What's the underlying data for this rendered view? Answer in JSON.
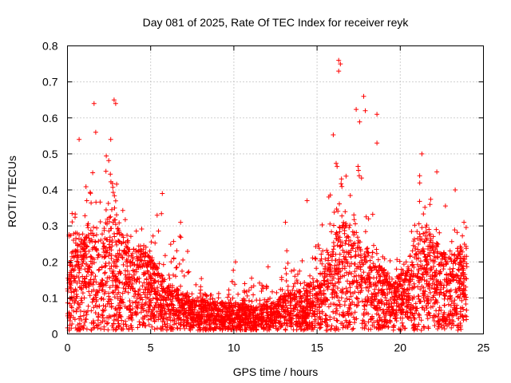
{
  "chart_data": {
    "type": "scatter",
    "title": "Day 081 of 2025, Rate Of TEC Index for receiver reyk",
    "xlabel": "GPS time / hours",
    "ylabel": "ROTI / TECUs",
    "xlim": [
      0,
      25
    ],
    "ylim": [
      0,
      0.8
    ],
    "xticks": [
      "0",
      "5",
      "10",
      "15",
      "20",
      "25"
    ],
    "yticks": [
      "0",
      "0.1",
      "0.2",
      "0.3",
      "0.4",
      "0.5",
      "0.6",
      "0.7",
      "0.8"
    ],
    "grid": true,
    "marker": "+",
    "series_color": "#ff0000",
    "envelope": {
      "hours": [
        0.0,
        0.5,
        1.0,
        1.5,
        2.0,
        2.5,
        3.0,
        3.5,
        4.0,
        4.5,
        5.0,
        5.5,
        6.0,
        6.5,
        7.0,
        7.5,
        8.0,
        8.5,
        9.0,
        9.5,
        10.0,
        10.5,
        11.0,
        11.5,
        12.0,
        12.5,
        13.0,
        13.5,
        14.0,
        14.5,
        15.0,
        15.5,
        16.0,
        16.5,
        17.0,
        17.5,
        18.0,
        18.5,
        19.0,
        19.5,
        20.0,
        20.5,
        21.0,
        21.5,
        22.0,
        22.5,
        23.0,
        23.5,
        24.0
      ],
      "typical": [
        0.15,
        0.18,
        0.2,
        0.22,
        0.2,
        0.25,
        0.22,
        0.2,
        0.18,
        0.18,
        0.16,
        0.13,
        0.1,
        0.09,
        0.08,
        0.07,
        0.07,
        0.06,
        0.06,
        0.06,
        0.06,
        0.06,
        0.05,
        0.05,
        0.06,
        0.06,
        0.08,
        0.08,
        0.09,
        0.1,
        0.11,
        0.14,
        0.2,
        0.24,
        0.22,
        0.2,
        0.18,
        0.15,
        0.13,
        0.11,
        0.12,
        0.14,
        0.2,
        0.22,
        0.2,
        0.17,
        0.16,
        0.18,
        0.18
      ],
      "peak": [
        0.38,
        0.36,
        0.4,
        0.64,
        0.4,
        0.65,
        0.4,
        0.36,
        0.33,
        0.32,
        0.3,
        0.39,
        0.25,
        0.31,
        0.3,
        0.18,
        0.16,
        0.15,
        0.14,
        0.12,
        0.2,
        0.14,
        0.18,
        0.16,
        0.2,
        0.18,
        0.31,
        0.25,
        0.24,
        0.2,
        0.37,
        0.34,
        0.76,
        0.55,
        0.66,
        0.62,
        0.6,
        0.3,
        0.27,
        0.25,
        0.22,
        0.3,
        0.5,
        0.45,
        0.38,
        0.36,
        0.4,
        0.35,
        0.3
      ]
    },
    "notable_points": [
      {
        "x": 16.3,
        "y": 0.76
      },
      {
        "x": 16.4,
        "y": 0.75
      },
      {
        "x": 16.3,
        "y": 0.73
      },
      {
        "x": 2.8,
        "y": 0.65
      },
      {
        "x": 2.9,
        "y": 0.64
      },
      {
        "x": 1.6,
        "y": 0.64
      },
      {
        "x": 17.8,
        "y": 0.66
      },
      {
        "x": 17.9,
        "y": 0.62
      },
      {
        "x": 18.6,
        "y": 0.61
      },
      {
        "x": 1.7,
        "y": 0.56
      },
      {
        "x": 0.7,
        "y": 0.54
      },
      {
        "x": 18.6,
        "y": 0.53
      },
      {
        "x": 21.3,
        "y": 0.5
      },
      {
        "x": 2.6,
        "y": 0.54
      },
      {
        "x": 22.2,
        "y": 0.45
      },
      {
        "x": 14.4,
        "y": 0.37
      },
      {
        "x": 5.7,
        "y": 0.39
      },
      {
        "x": 23.3,
        "y": 0.4
      },
      {
        "x": 13.1,
        "y": 0.31
      },
      {
        "x": 10.1,
        "y": 0.2
      },
      {
        "x": 6.8,
        "y": 0.31
      }
    ],
    "approx_point_count": 4000
  }
}
